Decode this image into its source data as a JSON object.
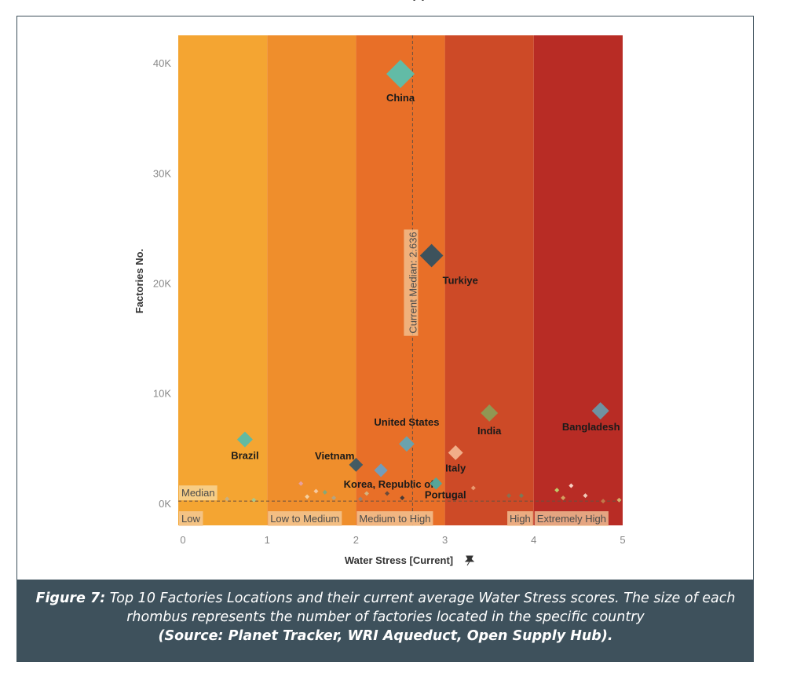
{
  "top_text": "y y",
  "caption": {
    "label": "Figure 7:",
    "line1": "Top 10 Factories Locations and their current average Water Stress scores. The size of each",
    "line2": "rhombus represents the number of factories located in the specific country",
    "line3": "(Source: Planet Tracker, WRI Aqueduct, Open Supply Hub)."
  },
  "chart_data": {
    "type": "scatter",
    "xlabel": "Water Stress [Current]",
    "xlabel_icon": "pin-icon",
    "ylabel": "Factories No.",
    "xlim": [
      0,
      5
    ],
    "ylim": [
      -2000,
      42500
    ],
    "x_ticks": [
      0,
      1,
      2,
      3,
      4,
      5
    ],
    "x_tick_labels": [
      "0",
      "1",
      "2",
      "3",
      "4",
      "5"
    ],
    "y_ticks": [
      0,
      10000,
      20000,
      30000,
      40000
    ],
    "y_tick_labels": [
      "0K",
      "10K",
      "20K",
      "30K",
      "40K"
    ],
    "bands": [
      {
        "label": "Low",
        "from": 0,
        "to": 1,
        "color": "#f4a532"
      },
      {
        "label": "Low to Medium",
        "from": 1,
        "to": 2,
        "color": "#ef8e2c"
      },
      {
        "label": "Medium to High",
        "from": 2,
        "to": 3,
        "color": "#e86f28"
      },
      {
        "label": "High",
        "from": 3,
        "to": 4,
        "color": "#cd4a27"
      },
      {
        "label": "Extremely High",
        "from": 4,
        "to": 5,
        "color": "#b82c25"
      }
    ],
    "median_x": {
      "label": "Current Median: 2.636",
      "value": 2.636
    },
    "median_y": {
      "label": "Median",
      "value": 200
    },
    "points": [
      {
        "name": "China",
        "x": 2.5,
        "y": 39000,
        "color": "#5bbfad"
      },
      {
        "name": "Turkiye",
        "x": 2.85,
        "y": 22500,
        "color": "#34505f"
      },
      {
        "name": "India",
        "x": 3.5,
        "y": 8200,
        "color": "#8c9b55"
      },
      {
        "name": "Bangladesh",
        "x": 4.75,
        "y": 8400,
        "color": "#6a98a8"
      },
      {
        "name": "Brazil",
        "x": 0.75,
        "y": 5800,
        "color": "#58bba8"
      },
      {
        "name": "United States",
        "x": 2.57,
        "y": 5400,
        "color": "#64a4b4"
      },
      {
        "name": "Italy",
        "x": 3.12,
        "y": 4600,
        "color": "#f2b38e"
      },
      {
        "name": "Vietnam",
        "x": 2.0,
        "y": 3500,
        "color": "#3a5865"
      },
      {
        "name": "Korea, Republic of",
        "x": 2.28,
        "y": 3000,
        "color": "#6e9fc2"
      },
      {
        "name": "Portugal",
        "x": 2.9,
        "y": 1800,
        "color": "#4fa89e"
      }
    ],
    "minor_points": [
      {
        "x": 0.55,
        "y": 400,
        "color": "#c8b080"
      },
      {
        "x": 0.85,
        "y": 300,
        "color": "#a9c78c"
      },
      {
        "x": 1.38,
        "y": 1800,
        "color": "#e7a0a0"
      },
      {
        "x": 1.45,
        "y": 600,
        "color": "#f4d0a0"
      },
      {
        "x": 1.55,
        "y": 1100,
        "color": "#f6c9a0"
      },
      {
        "x": 1.65,
        "y": 1000,
        "color": "#86a878"
      },
      {
        "x": 1.75,
        "y": 500,
        "color": "#b4a482"
      },
      {
        "x": 2.05,
        "y": 400,
        "color": "#9a8370"
      },
      {
        "x": 2.12,
        "y": 900,
        "color": "#d4b37f"
      },
      {
        "x": 2.35,
        "y": 900,
        "color": "#6b4a3a"
      },
      {
        "x": 2.52,
        "y": 500,
        "color": "#4a3a34"
      },
      {
        "x": 3.32,
        "y": 1400,
        "color": "#e89a70"
      },
      {
        "x": 3.72,
        "y": 700,
        "color": "#8a6f50"
      },
      {
        "x": 3.86,
        "y": 700,
        "color": "#7a7a58"
      },
      {
        "x": 4.26,
        "y": 1200,
        "color": "#bfcc6a"
      },
      {
        "x": 4.33,
        "y": 500,
        "color": "#d4a060"
      },
      {
        "x": 4.42,
        "y": 1600,
        "color": "#f7d1c4"
      },
      {
        "x": 4.58,
        "y": 700,
        "color": "#f0c8b8"
      },
      {
        "x": 4.78,
        "y": 200,
        "color": "#c0784a"
      },
      {
        "x": 4.96,
        "y": 300,
        "color": "#d6b06a"
      }
    ]
  }
}
